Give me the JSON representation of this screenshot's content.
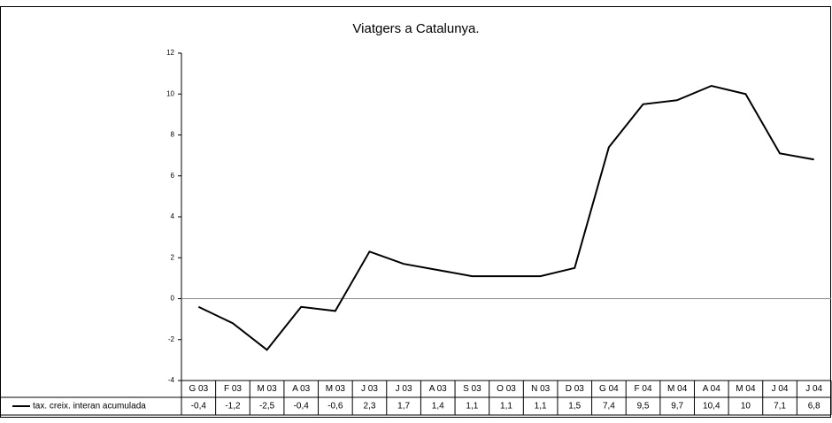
{
  "chart_data": {
    "type": "line",
    "title": "Viatgers a Catalunya.",
    "categories": [
      "G 03",
      "F 03",
      "M 03",
      "A 03",
      "M 03",
      "J 03",
      "J 03",
      "A 03",
      "S 03",
      "O 03",
      "N 03",
      "D 03",
      "G 04",
      "F 04",
      "M 04",
      "A 04",
      "M 04",
      "J 04",
      "J 04"
    ],
    "series": [
      {
        "name": "tax. creix. interan acumulada",
        "color": "#000000",
        "values": [
          -0.4,
          -1.2,
          -2.5,
          -0.4,
          -0.6,
          2.3,
          1.7,
          1.4,
          1.1,
          1.1,
          1.1,
          1.5,
          7.4,
          9.5,
          9.7,
          10.4,
          10,
          7.1,
          6.8
        ],
        "value_labels": [
          "-0,4",
          "-1,2",
          "-2,5",
          "-0,4",
          "-0,6",
          "2,3",
          "1,7",
          "1,4",
          "1,1",
          "1,1",
          "1,1",
          "1,5",
          "7,4",
          "9,5",
          "9,7",
          "10,4",
          "10",
          "7,1",
          "6,8"
        ]
      }
    ],
    "ylim": [
      -4,
      12
    ],
    "yticks": [
      -4,
      -2,
      0,
      2,
      4,
      6,
      8,
      10,
      12
    ],
    "zero_line": true,
    "data_table": true
  }
}
